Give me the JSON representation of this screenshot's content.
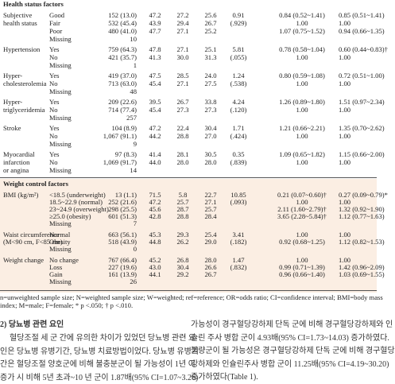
{
  "table": {
    "sections": [
      {
        "title": "Health status factors",
        "groups": [
          {
            "factor": [
              "Subjective",
              "health status"
            ],
            "rows": [
              [
                "Good",
                "152 (13.0)",
                "47.2",
                "27.2",
                "25.6",
                "0.91",
                "0.84 (0.52~1.41)",
                "0.85 (0.51~1.41)"
              ],
              [
                "Fair",
                "532 (45.4)",
                "43.9",
                "29.4",
                "26.7",
                "(.929)",
                "1.00",
                "1.00"
              ],
              [
                "Poor",
                "480 (41.0)",
                "47.7",
                "27.1",
                "25.2",
                null,
                "1.07 (0.75~1.52)",
                "0.94 (0.66~1.35)"
              ],
              [
                "Missing",
                "10"
              ]
            ]
          },
          {
            "factor": [
              "Hypertension"
            ],
            "rows": [
              [
                "Yes",
                "759 (64.3)",
                "47.8",
                "27.1",
                "25.1",
                "5.81",
                "0.78 (0.58~1.04)",
                "0.60 (0.44~0.83)†"
              ],
              [
                "No",
                "421 (35.7)",
                "41.3",
                "30.0",
                "31.3",
                "(.055)",
                "1.00",
                "1.00"
              ],
              [
                "Missing",
                "1"
              ]
            ]
          },
          {
            "factor": [
              "Hyper-",
              "cholesterolemia"
            ],
            "rows": [
              [
                "Yes",
                "419 (37.0)",
                "47.5",
                "28.5",
                "24.0",
                "1.24",
                "0.80 (0.59~1.08)",
                "0.72 (0.51~1.00)"
              ],
              [
                "No",
                "713 (63.0)",
                "45.4",
                "27.1",
                "27.5",
                "(.538)",
                "1.00",
                "1.00"
              ],
              [
                "Missing",
                "48"
              ]
            ]
          },
          {
            "factor": [
              "Hyper-",
              "triglyceridemia"
            ],
            "rows": [
              [
                "Yes",
                "209 (22.6)",
                "39.5",
                "26.7",
                "33.8",
                "4.24",
                "1.26 (0.89~1.80)",
                "1.51 (0.97~2.34)"
              ],
              [
                "No",
                "714 (77.4)",
                "45.4",
                "27.3",
                "27.3",
                "(.120)",
                "1.00",
                "1.00"
              ],
              [
                "Missing",
                "257"
              ]
            ]
          },
          {
            "factor": [
              "Stroke"
            ],
            "rows": [
              [
                "Yes",
                "104 (8.9)",
                "47.2",
                "22.4",
                "30.4",
                "1.71",
                "1.21 (0.66~2.21)",
                "1.35 (0.70~2.62)"
              ],
              [
                "No",
                "1,067 (91.1)",
                "44.2",
                "28.8",
                "27.0",
                "(.424)",
                "1.00",
                "1.00"
              ],
              [
                "Missing",
                "9"
              ]
            ]
          },
          {
            "factor": [
              "Myocardial",
              "infarction",
              "or angina"
            ],
            "rows": [
              [
                "Yes",
                "97 (8.3)",
                "41.4",
                "28.1",
                "30.5",
                "0.35",
                "1.09 (0.65~1.82)",
                "1.15 (0.66~2.00)"
              ],
              [
                "No",
                "1,069 (91.7)",
                "44.0",
                "28.0",
                "28.0",
                "(.839)",
                "1.00",
                "1.00"
              ],
              [
                "Missing",
                "14"
              ]
            ]
          }
        ]
      },
      {
        "title": "Weight control factors",
        "groups": [
          {
            "factor": [
              "BMI (kg/m²)"
            ],
            "rows": [
              [
                "<18.5 (underweight)",
                "13 (1.1)",
                "71.5",
                "5.8",
                "22.7",
                "10.85",
                "0.21 (0.07~0.60)†",
                "0.27 (0.09~0.79)*"
              ],
              [
                "18.5~22.9 (normal)",
                "252 (21.6)",
                "47.2",
                "25.7",
                "27.1",
                "(.093)",
                "1.00",
                "1.00"
              ],
              [
                "23~24.9 (overweight)",
                "298 (25.5)",
                "45.6",
                "28.7",
                "25.7",
                null,
                "2.11 (1.60~2.79)†",
                "1.32 (0.92~1.90)"
              ],
              [
                "≥25.0 (obesity)",
                "601 (51.3)",
                "42.8",
                "28.8",
                "28.4",
                null,
                "3.65 (2.28~5.84)†",
                "1.12 (0.77~1.63)"
              ],
              [
                "Missing",
                "7"
              ]
            ]
          },
          {
            "factor": [
              "Waist circumference",
              "(M<90 cm, F<85 cm)"
            ],
            "rows": [
              [
                "Normal",
                "663 (56.1)",
                "45.3",
                "29.3",
                "25.4",
                "3.41",
                "1.00",
                "1.00"
              ],
              [
                "Obesity",
                "518 (43.9)",
                "44.8",
                "26.2",
                "29.0",
                "(.182)",
                "0.92 (0.68~1.25)",
                "1.12 (0.82~1.53)"
              ],
              [
                "Missing",
                "0"
              ]
            ]
          },
          {
            "factor": [
              "Weight change"
            ],
            "rows": [
              [
                "No change",
                "767 (66.4)",
                "45.2",
                "26.8",
                "28.0",
                "1.47",
                "1.00",
                "1.00"
              ],
              [
                "Loss",
                "227 (19.6)",
                "43.0",
                "30.4",
                "26.6",
                "(.832)",
                "0.99 (0.71~1.39)",
                "1.42 (0.96~2.09)"
              ],
              [
                "Gain",
                "161 (13.9)",
                "44.1",
                "29.2",
                "26.7",
                null,
                "0.96 (0.66~1.40)",
                "1.03 (0.69~1.55)"
              ],
              [
                "Missing",
                "26"
              ]
            ]
          }
        ]
      }
    ]
  },
  "footnote": [
    "n=unweighted sample size; N=weighted sample size; W=weighted; ref=reference; OR=odds ratio; CI=confidence interval; BMI=body mass",
    "index; M=male; F=female; * p <.050; † p <.010."
  ],
  "body": {
    "left": {
      "heading": "2) 당뇨병 관련 요인",
      "lines": [
        "혈당조절 세 군 간에 유의한 차이가 있었던 당뇨병 관련 요",
        "인은 당뇨병 유병기간, 당뇨병 치료방법이었다. 당뇨병 유병기",
        "간은 혈당조절 양호군에 비해 불충분군이 될 가능성이 1년 이",
        "증가 시 비해 5년 초과~10 년 군이 1.87배(95% CI=1.07~3.26)"
      ]
    },
    "right": {
      "lines": [
        "가능성이 경구혈당강하제 단독 군에 비해 경구혈당강하제와 인",
        "슐린 주사 병합 군이 4.93배(95% CI=1.73~14.03) 증가하였다.",
        "불량군이 될 가능성은 경구혈당강하제 단독 군에 비해 경구혈당",
        "강하제와 인슐린주사 병합 군이 11.25배(95% CI=4.19~30.20)",
        "증가하였다(Table 1)."
      ]
    }
  }
}
